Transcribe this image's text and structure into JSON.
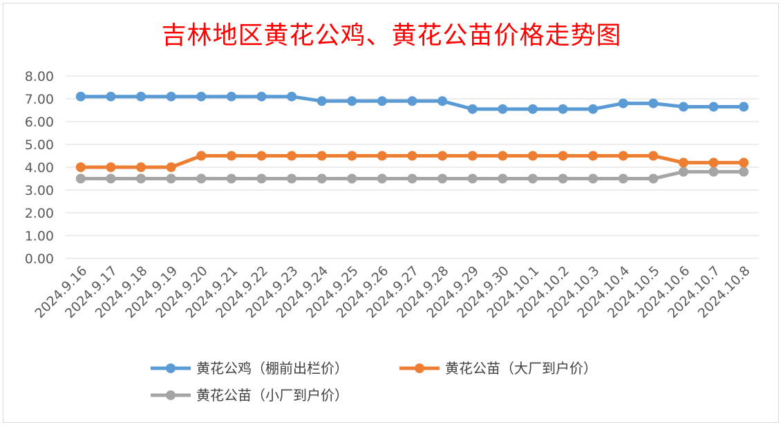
{
  "chart_data": {
    "type": "line",
    "title": "吉林地区黄花公鸡、黄花公苗价格走势图",
    "categories": [
      "2024.9.16",
      "2024.9.17",
      "2024.9.18",
      "2024.9.19",
      "2024.9.20",
      "2024.9.21",
      "2024.9.22",
      "2024.9.23",
      "2024.9.24",
      "2024.9.25",
      "2024.9.26",
      "2024.9.27",
      "2024.9.28",
      "2024.9.29",
      "2024.9.30",
      "2024.10.1",
      "2024.10.2",
      "2024.10.3",
      "2024.10.4",
      "2024.10.5",
      "2024.10.6",
      "2024.10.7",
      "2024.10.8"
    ],
    "series": [
      {
        "name": "黄花公鸡（棚前出栏价）",
        "color": "#5b9bd5",
        "values": [
          7.1,
          7.1,
          7.1,
          7.1,
          7.1,
          7.1,
          7.1,
          7.1,
          6.9,
          6.9,
          6.9,
          6.9,
          6.9,
          6.55,
          6.55,
          6.55,
          6.55,
          6.55,
          6.8,
          6.8,
          6.65,
          6.65,
          6.65
        ]
      },
      {
        "name": "黄花公苗（大厂到户价）",
        "color": "#ed7d31",
        "values": [
          4.0,
          4.0,
          4.0,
          4.0,
          4.5,
          4.5,
          4.5,
          4.5,
          4.5,
          4.5,
          4.5,
          4.5,
          4.5,
          4.5,
          4.5,
          4.5,
          4.5,
          4.5,
          4.5,
          4.5,
          4.2,
          4.2,
          4.2
        ]
      },
      {
        "name": "黄花公苗（小厂到户价）",
        "color": "#a5a5a5",
        "values": [
          3.5,
          3.5,
          3.5,
          3.5,
          3.5,
          3.5,
          3.5,
          3.5,
          3.5,
          3.5,
          3.5,
          3.5,
          3.5,
          3.5,
          3.5,
          3.5,
          3.5,
          3.5,
          3.5,
          3.5,
          3.8,
          3.8,
          3.8
        ]
      }
    ],
    "yticks": [
      "8.00",
      "7.00",
      "6.00",
      "5.00",
      "4.00",
      "3.00",
      "2.00",
      "1.00",
      "0.00"
    ],
    "ylim": [
      0,
      8
    ],
    "grid": true,
    "legend_position": "bottom"
  }
}
